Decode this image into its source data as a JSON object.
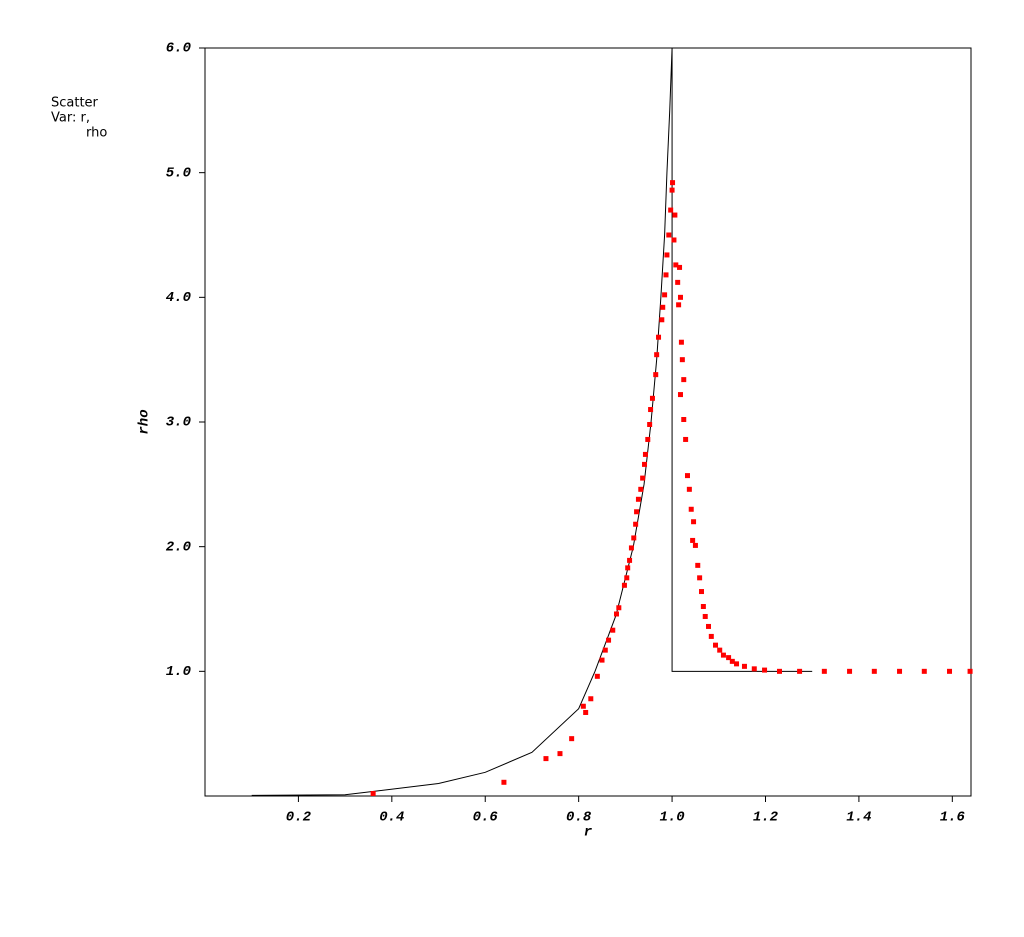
{
  "chart_data": {
    "type": "scatter",
    "side_text": [
      "Scatter",
      "Var: r,",
      "rho"
    ],
    "xlabel": "r",
    "ylabel": "rho",
    "xlim": [
      0,
      1.64
    ],
    "ylim": [
      0,
      6
    ],
    "xticks": [
      0.2,
      0.4,
      0.6,
      0.8,
      {
        "value": 1,
        "label": "1.0"
      },
      1.2,
      1.4,
      1.6
    ],
    "yticks": [
      {
        "value": 1,
        "label": "1.0"
      },
      {
        "value": 2,
        "label": "2.0"
      },
      {
        "value": 3,
        "label": "3.0"
      },
      {
        "value": 4,
        "label": "4.0"
      },
      {
        "value": 5,
        "label": "5.0"
      },
      {
        "value": 6,
        "label": "6.0"
      }
    ],
    "color": "#ff0000",
    "line_color": "#000000",
    "reference": {
      "x": [
        0.1,
        0.3,
        0.5,
        0.6,
        0.7,
        0.8,
        0.835,
        0.88,
        0.917,
        0.94,
        0.955,
        0.967,
        0.976,
        0.984,
        0.989,
        0.995,
        1.0,
        1.0,
        1.3
      ],
      "values": [
        0.005,
        0.01,
        0.1,
        0.19,
        0.35,
        0.7,
        1.0,
        1.45,
        2.0,
        2.5,
        3.0,
        3.5,
        4.0,
        4.5,
        5.0,
        5.5,
        6.0,
        1.0,
        1.0
      ]
    },
    "x": [
      0.36,
      0.64,
      0.73,
      0.76,
      0.785,
      0.81,
      0.815,
      0.826,
      0.84,
      0.85,
      0.857,
      0.864,
      0.873,
      0.881,
      0.886,
      0.898,
      0.903,
      0.905,
      0.909,
      0.913,
      0.918,
      0.922,
      0.924,
      0.928,
      0.933,
      0.937,
      0.941,
      0.943,
      0.948,
      0.952,
      0.954,
      0.958,
      0.965,
      0.967,
      0.971,
      0.978,
      0.98,
      0.984,
      0.987,
      0.989,
      0.993,
      0.997,
      1.0,
      1.001,
      1.006,
      1.004,
      1.008,
      1.012,
      1.016,
      1.014,
      1.018,
      1.02,
      1.022,
      1.025,
      1.018,
      1.025,
      1.029,
      1.033,
      1.037,
      1.041,
      1.046,
      1.044,
      1.05,
      1.055,
      1.059,
      1.063,
      1.067,
      1.071,
      1.078,
      1.084,
      1.093,
      1.102,
      1.11,
      1.121,
      1.129,
      1.138,
      1.155,
      1.176,
      1.198,
      1.23,
      1.273,
      1.326,
      1.38,
      1.433,
      1.487,
      1.54,
      1.594,
      1.638
    ],
    "values": [
      0.02,
      0.11,
      0.3,
      0.34,
      0.46,
      0.72,
      0.67,
      0.78,
      0.96,
      1.09,
      1.17,
      1.25,
      1.33,
      1.46,
      1.51,
      1.69,
      1.75,
      1.83,
      1.89,
      1.99,
      2.07,
      2.18,
      2.28,
      2.38,
      2.46,
      2.55,
      2.66,
      2.74,
      2.86,
      2.98,
      3.1,
      3.19,
      3.38,
      3.54,
      3.68,
      3.82,
      3.92,
      4.02,
      4.18,
      4.34,
      4.5,
      4.7,
      4.86,
      4.92,
      4.66,
      4.46,
      4.26,
      4.12,
      4.24,
      3.94,
      4.0,
      3.64,
      3.5,
      3.34,
      3.22,
      3.02,
      2.86,
      2.57,
      2.46,
      2.3,
      2.2,
      2.05,
      2.01,
      1.85,
      1.75,
      1.64,
      1.52,
      1.44,
      1.36,
      1.28,
      1.21,
      1.17,
      1.13,
      1.11,
      1.08,
      1.06,
      1.04,
      1.02,
      1.01,
      1.0,
      1.0,
      1.0,
      1.0,
      1.0,
      1.0,
      1.0,
      1.0,
      1.0
    ]
  }
}
